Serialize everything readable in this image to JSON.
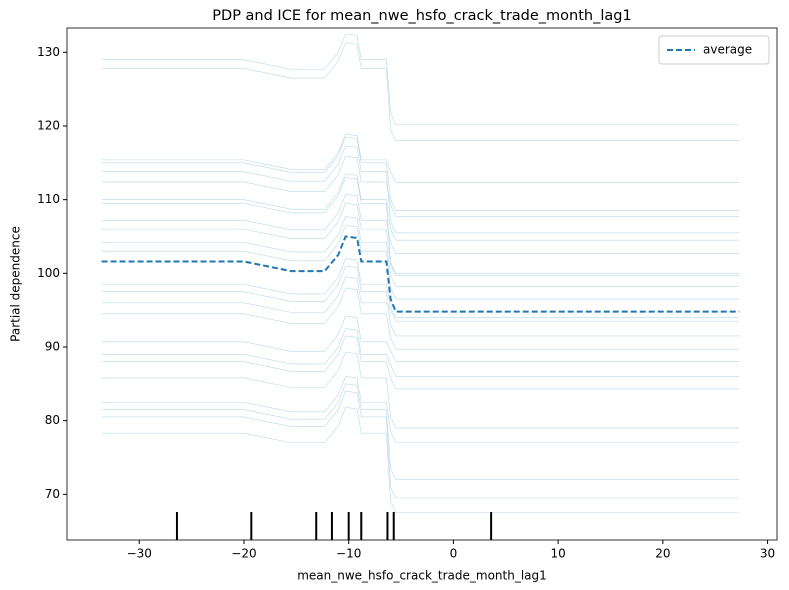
{
  "chart_data": {
    "type": "line",
    "title": "PDP and ICE for mean_nwe_hsfo_crack_trade_month_lag1",
    "x_label": "mean_nwe_hsfo_crack_trade_month_lag1",
    "y_label": "Partial dependence",
    "x": [
      -33.6,
      -20,
      -15.5,
      -12.3,
      -11,
      -10.3,
      -9.2,
      -8.8,
      -6.4,
      -6.0,
      -5.5,
      27.3
    ],
    "xlim": [
      -36.9,
      30.9
    ],
    "ylim": [
      63.8,
      133.3
    ],
    "xticks": [
      {
        "value": -30,
        "label": "−30"
      },
      {
        "value": -20,
        "label": "−20"
      },
      {
        "value": -10,
        "label": "−10"
      },
      0,
      10,
      20,
      30
    ],
    "yticks": [
      70,
      80,
      90,
      100,
      110,
      120,
      130
    ],
    "legend": "upper right",
    "rug": [
      -26.4,
      -19.3,
      -13.1,
      -11.6,
      -10.0,
      -8.8,
      -6.3,
      -5.7,
      3.6
    ],
    "rug_color": "#000000",
    "series": [
      {
        "color": "#a6cee3",
        "values": [
          129,
          129,
          127.7,
          127.7,
          130,
          132.5,
          132.3,
          129,
          129,
          121.7,
          120.2,
          120.2
        ]
      },
      {
        "color": "#a6cee3",
        "values": [
          127.8,
          127.8,
          126.5,
          126.5,
          128.8,
          131.3,
          131.1,
          127.8,
          127.8,
          119.5,
          118,
          118
        ]
      },
      {
        "color": "#a6cee3",
        "values": [
          115.4,
          115.4,
          114.1,
          114.1,
          116.4,
          118.9,
          118.7,
          115.4,
          115.4,
          113.8,
          112.3,
          112.3
        ]
      },
      {
        "color": "#a6cee3",
        "values": [
          115,
          115,
          113.7,
          113.7,
          116,
          118.5,
          118.3,
          115,
          115,
          110,
          108.5,
          108.5
        ]
      },
      {
        "color": "#a6cee3",
        "values": [
          113.8,
          113.8,
          112.5,
          112.5,
          114.8,
          117.3,
          117.1,
          113.8,
          113.8,
          107,
          105.5,
          105.5
        ]
      },
      {
        "color": "#a6cee3",
        "values": [
          112.4,
          112.4,
          111.1,
          111.1,
          113.4,
          115.9,
          115.7,
          112.4,
          112.4,
          109.2,
          107.7,
          107.7
        ]
      },
      {
        "color": "#a6cee3",
        "values": [
          110,
          110,
          108.7,
          108.7,
          111,
          113.5,
          113.3,
          110,
          110,
          106,
          104.5,
          104.5
        ]
      },
      {
        "color": "#a6cee3",
        "values": [
          109.5,
          109.5,
          108.2,
          108.2,
          110.5,
          113,
          112.8,
          109.5,
          109.5,
          101.5,
          100,
          100
        ]
      },
      {
        "color": "#a6cee3",
        "values": [
          107.2,
          107.2,
          105.9,
          105.9,
          108.2,
          110.7,
          110.5,
          107.2,
          107.2,
          104.2,
          102.7,
          102.7
        ]
      },
      {
        "color": "#a6cee3",
        "values": [
          106,
          106,
          104.7,
          104.7,
          107,
          109.5,
          109.3,
          106,
          106,
          101.2,
          99.7,
          99.7
        ]
      },
      {
        "color": "#a6cee3",
        "values": [
          104.2,
          104.2,
          102.9,
          102.9,
          105.2,
          107.7,
          107.5,
          104.2,
          104.2,
          99.7,
          98.2,
          98.2
        ]
      },
      {
        "color": "#a6cee3",
        "values": [
          103,
          103,
          101.7,
          101.7,
          104,
          106.5,
          106.3,
          103,
          103,
          98,
          96.5,
          96.5
        ]
      },
      {
        "color": "#a6cee3",
        "values": [
          98.5,
          98.5,
          97.2,
          97.2,
          99.5,
          102,
          101.8,
          98.5,
          98.5,
          95.5,
          94,
          94
        ]
      },
      {
        "color": "#a6cee3",
        "values": [
          97.5,
          97.5,
          96.2,
          96.2,
          98.5,
          101,
          100.8,
          97.5,
          97.5,
          93,
          91.5,
          91.5
        ]
      },
      {
        "color": "#a6cee3",
        "values": [
          96,
          96,
          94.7,
          94.7,
          97,
          99.5,
          99.3,
          96,
          96,
          95,
          93.5,
          93.5
        ]
      },
      {
        "color": "#a6cee3",
        "values": [
          94.5,
          94.5,
          93.2,
          93.2,
          95.5,
          98,
          97.8,
          94.5,
          94.5,
          91.2,
          89.7,
          89.7
        ]
      },
      {
        "color": "#a6cee3",
        "values": [
          90.7,
          90.7,
          89.4,
          89.4,
          91.7,
          94.2,
          94,
          90.7,
          90.7,
          89.5,
          88,
          88
        ]
      },
      {
        "color": "#a6cee3",
        "values": [
          89,
          89,
          87.7,
          87.7,
          90,
          92.5,
          92.3,
          89,
          89,
          87.5,
          86,
          86
        ]
      },
      {
        "color": "#a6cee3",
        "values": [
          88,
          88,
          86.7,
          86.7,
          89,
          91.5,
          91.3,
          88,
          88,
          85.8,
          84.3,
          84.3
        ]
      },
      {
        "color": "#a6cee3",
        "values": [
          85.8,
          85.8,
          84.5,
          84.5,
          86.8,
          89.3,
          89.1,
          85.8,
          85.8,
          80.5,
          79,
          79
        ]
      },
      {
        "color": "#a6cee3",
        "values": [
          82.5,
          82.5,
          81.2,
          81.2,
          83.5,
          86,
          85.8,
          82.5,
          82.5,
          78.5,
          77,
          77
        ]
      },
      {
        "color": "#a6cee3",
        "values": [
          81.5,
          81.5,
          80.2,
          80.2,
          82.5,
          85,
          84.8,
          81.5,
          81.5,
          73.5,
          72,
          72
        ]
      },
      {
        "color": "#a6cee3",
        "values": [
          80.5,
          80.5,
          79.2,
          79.2,
          81.5,
          84,
          83.8,
          80.5,
          80.5,
          71,
          69.5,
          69.5
        ]
      },
      {
        "color": "#a6cee3",
        "values": [
          78.3,
          78.3,
          77,
          77,
          79.3,
          81.8,
          81.6,
          78.3,
          78.3,
          69,
          67.5,
          67.5
        ]
      },
      {
        "name": "average",
        "color": "#1f77b4",
        "linestyle": "dashed",
        "values": [
          101.6,
          101.6,
          100.3,
          100.3,
          102.5,
          105,
          104.8,
          101.6,
          101.6,
          96.5,
          94.8,
          94.8
        ]
      }
    ]
  }
}
